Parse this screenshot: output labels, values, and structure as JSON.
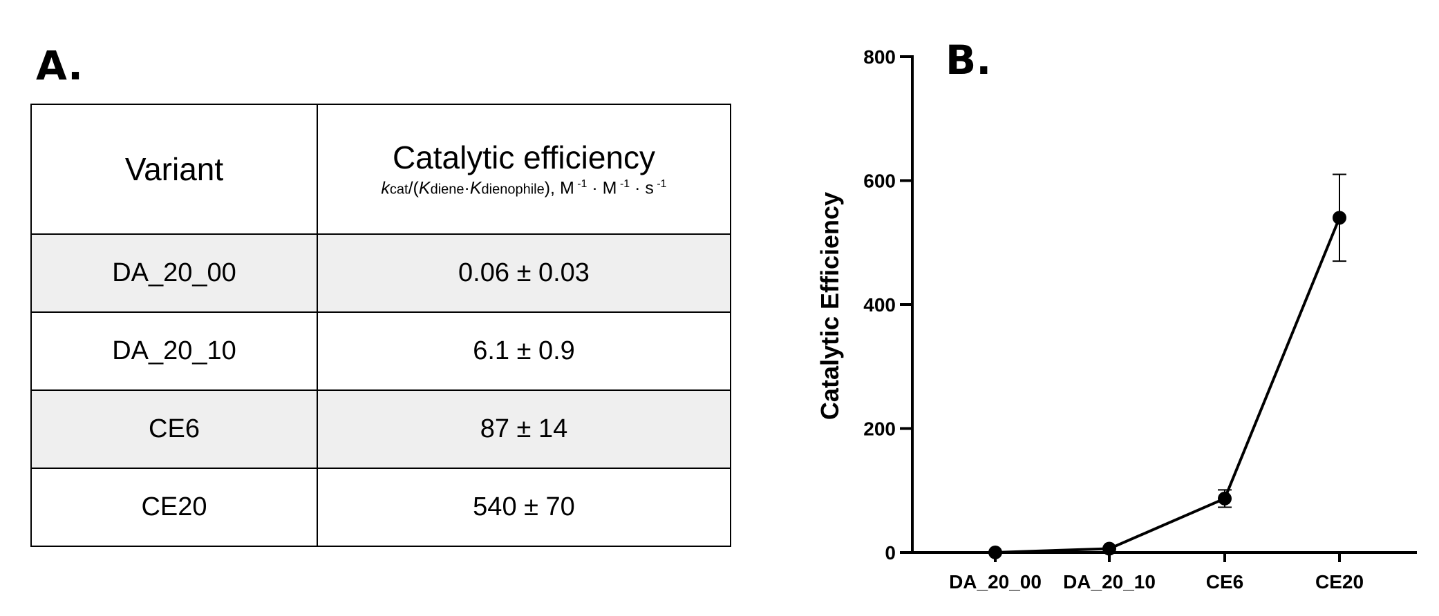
{
  "panel_a": {
    "label": "A.",
    "table": {
      "header_variant": "Variant",
      "header_efficiency": "Catalytic efficiency",
      "header_formula": {
        "k": "k",
        "cat": "cat",
        "open": "/(",
        "K1": "K",
        "diene": "diene",
        "dot": "·",
        "K2": "K",
        "dienophile": "dienophile",
        "close": "), M",
        "exp1": " -1",
        "m2": " · M",
        "exp2": " -1",
        "s": " · s",
        "exp3": " -1"
      },
      "rows": [
        {
          "variant": "DA_20_00",
          "efficiency": "0.06 ± 0.03"
        },
        {
          "variant": "DA_20_10",
          "efficiency": "6.1 ± 0.9"
        },
        {
          "variant": "CE6",
          "efficiency": "87 ± 14"
        },
        {
          "variant": "CE20",
          "efficiency": "540 ± 70"
        }
      ]
    }
  },
  "panel_b": {
    "label": "B."
  },
  "chart_data": {
    "type": "line",
    "title": "",
    "xlabel": "",
    "ylabel": "Catalytic Efficiency",
    "categories": [
      "DA_20_00",
      "DA_20_10",
      "CE6",
      "CE20"
    ],
    "series": [
      {
        "name": "Catalytic Efficiency",
        "values": [
          0.06,
          6.1,
          87,
          540
        ],
        "errors": [
          0.03,
          0.9,
          14,
          70
        ]
      }
    ],
    "ylim": [
      0,
      800
    ],
    "yticks": [
      0,
      200,
      400,
      600,
      800
    ],
    "ytick_labels": [
      "0",
      "200",
      "400",
      "600",
      "800"
    ],
    "grid": false,
    "legend": "none",
    "colors": {
      "line": "#000000",
      "marker": "#000000"
    }
  }
}
